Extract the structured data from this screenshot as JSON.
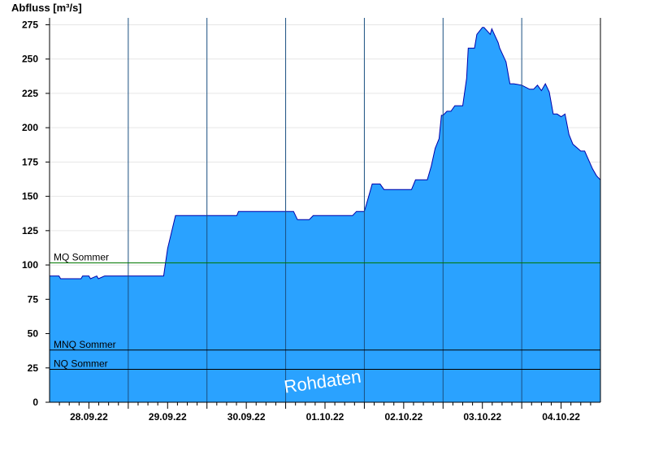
{
  "chart_data": {
    "type": "area",
    "ylabel": "Abfluss [m³/s]",
    "xlabel": "",
    "title": "",
    "ylim": [
      0,
      280
    ],
    "yticks": [
      0,
      25,
      50,
      75,
      100,
      125,
      150,
      175,
      200,
      225,
      250,
      275
    ],
    "xlim": [
      0,
      7
    ],
    "x_unit": "days",
    "day_labels": [
      "28.09.22",
      "29.09.22",
      "30.09.22",
      "01.10.22",
      "02.10.22",
      "03.10.22",
      "04.10.22"
    ],
    "grid": true,
    "fill_color": "#2aa2ff",
    "line_color": "#0000aa",
    "series": [
      {
        "x": [
          0,
          0.12,
          0.14,
          0.16,
          0.4,
          0.42,
          0.5,
          0.52,
          0.6,
          0.62,
          0.7,
          0.72,
          1.0,
          1.3,
          1.45,
          1.5,
          1.6,
          1.65,
          2.0,
          2.38,
          2.4,
          2.5,
          3.1,
          3.15,
          3.3,
          3.35,
          3.5,
          3.85,
          3.9,
          4.0,
          4.05,
          4.1,
          4.2,
          4.25,
          4.6,
          4.65,
          4.8,
          4.85,
          4.9,
          4.95,
          4.98,
          5.0,
          5.05,
          5.1,
          5.15,
          5.25,
          5.3,
          5.32,
          5.4,
          5.43,
          5.5,
          5.52,
          5.6,
          5.62,
          5.7,
          5.72,
          5.8,
          5.85,
          5.9,
          6.0,
          6.1,
          6.15,
          6.2,
          6.25,
          6.3,
          6.35,
          6.4,
          6.45,
          6.5,
          6.55,
          6.6,
          6.65,
          6.75,
          6.8,
          6.9,
          6.95,
          7.0
        ],
        "y": [
          92,
          92,
          90,
          90,
          90,
          92,
          92,
          90,
          92,
          90,
          92,
          92,
          92,
          92,
          92,
          112,
          136,
          136,
          136,
          136,
          139,
          139,
          139,
          133,
          133,
          136,
          136,
          136,
          139,
          139,
          149,
          159,
          159,
          155,
          155,
          162,
          162,
          172,
          185,
          192,
          209,
          209,
          212,
          212,
          216,
          216,
          236,
          258,
          258,
          268,
          273,
          273,
          268,
          272,
          262,
          258,
          248,
          232,
          232,
          231,
          228,
          228,
          231,
          227,
          232,
          226,
          210,
          210,
          208,
          210,
          195,
          188,
          183,
          183,
          170,
          165,
          162
        ]
      }
    ],
    "reference_lines": [
      {
        "label": "MQ Sommer",
        "value": 101.5,
        "color": "#007700"
      },
      {
        "label": "MNQ Sommer",
        "value": 38,
        "color": "#000000"
      },
      {
        "label": "NQ Sommer",
        "value": 24,
        "color": "#000000"
      }
    ],
    "watermark": "Rohdaten"
  }
}
